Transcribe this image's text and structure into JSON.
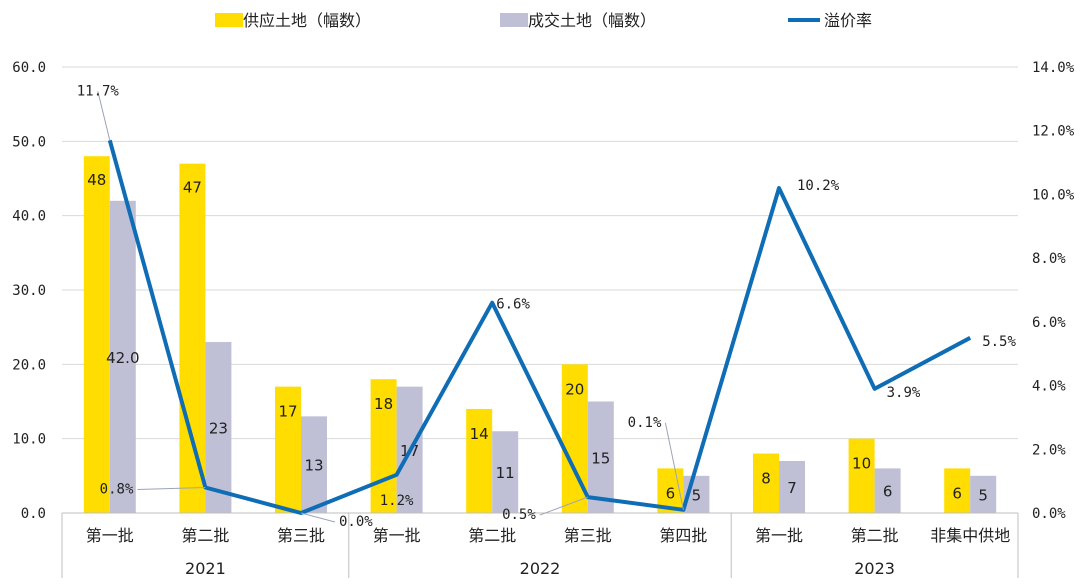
{
  "chart_data": {
    "type": "bar",
    "groups": [
      {
        "label": "2021",
        "categories": [
          "第一批",
          "第二批",
          "第三批"
        ]
      },
      {
        "label": "2022",
        "categories": [
          "第一批",
          "第二批",
          "第三批",
          "第四批"
        ]
      },
      {
        "label": "2023",
        "categories": [
          "第一批",
          "第二批",
          "非集中供地"
        ]
      }
    ],
    "categories": [
      "第一批",
      "第二批",
      "第三批",
      "第一批",
      "第二批",
      "第三批",
      "第四批",
      "第一批",
      "第二批",
      "非集中供地"
    ],
    "series": [
      {
        "name": "供应土地（幅数）",
        "type": "bar",
        "axis": "left",
        "color": "#FFDD00",
        "values": [
          48,
          47,
          17,
          18,
          14,
          20,
          6,
          8,
          10,
          6
        ],
        "labels": [
          "48",
          "47",
          "17",
          "18",
          "14",
          "20",
          "6",
          "8",
          "10",
          "6"
        ]
      },
      {
        "name": "成交土地（幅数）",
        "type": "bar",
        "axis": "left",
        "color": "#BFBFD6",
        "values": [
          42,
          23,
          13,
          17,
          11,
          15,
          5,
          7,
          6,
          5
        ],
        "labels": [
          "42.0",
          "23",
          "13",
          "17",
          "11",
          "15",
          "5",
          "7",
          "6",
          "5"
        ]
      },
      {
        "name": "溢价率",
        "type": "line",
        "axis": "right",
        "color": "#0F6DB5",
        "values": [
          11.7,
          0.8,
          0.0,
          1.2,
          6.6,
          0.5,
          0.1,
          10.2,
          3.9,
          5.5
        ],
        "labels": [
          "11.7%",
          "0.8%",
          "0.0%",
          "1.2%",
          "6.6%",
          "0.5%",
          "0.1%",
          "10.2%",
          "3.9%",
          "5.5%"
        ]
      }
    ],
    "y_left": {
      "range": [
        0,
        60
      ],
      "ticks": [
        "0.0",
        "10.0",
        "20.0",
        "30.0",
        "40.0",
        "50.0",
        "60.0"
      ]
    },
    "y_right": {
      "range": [
        0,
        14
      ],
      "ticks": [
        "0.0%",
        "2.0%",
        "4.0%",
        "6.0%",
        "8.0%",
        "10.0%",
        "12.0%",
        "14.0%"
      ]
    },
    "grid": true,
    "legend": "top"
  }
}
